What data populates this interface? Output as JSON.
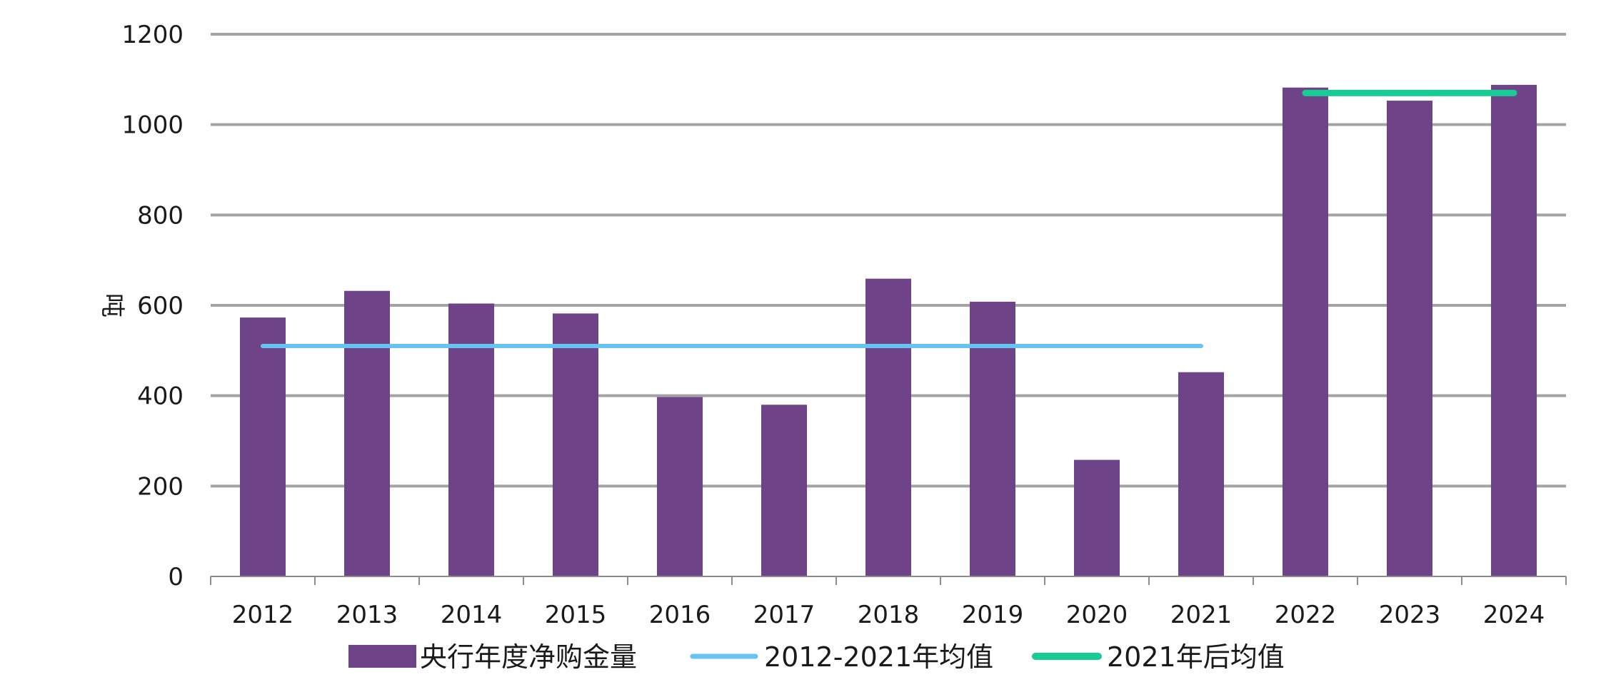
{
  "chart_data": {
    "type": "bar",
    "categories": [
      "2012",
      "2013",
      "2014",
      "2015",
      "2016",
      "2017",
      "2018",
      "2019",
      "2020",
      "2021",
      "2022",
      "2023",
      "2024"
    ],
    "series": [
      {
        "name": "央行年度净购金量",
        "type": "bar",
        "color": "#6e4388",
        "values": [
          573,
          632,
          604,
          582,
          397,
          380,
          659,
          608,
          258,
          452,
          1082,
          1053,
          1088
        ]
      },
      {
        "name": "2012-2021年均值",
        "type": "line",
        "color": "#66c3f2",
        "value": 510,
        "span": [
          "2012",
          "2021"
        ]
      },
      {
        "name": "2021年后均值",
        "type": "line",
        "color": "#19cc95",
        "value": 1070,
        "span": [
          "2022",
          "2024"
        ]
      }
    ],
    "ylabel": "吨",
    "xlabel": "",
    "ylim": [
      0,
      1200
    ],
    "yticks": [
      0,
      200,
      400,
      600,
      800,
      1000,
      1200
    ],
    "grid": true,
    "legend_position": "bottom"
  }
}
